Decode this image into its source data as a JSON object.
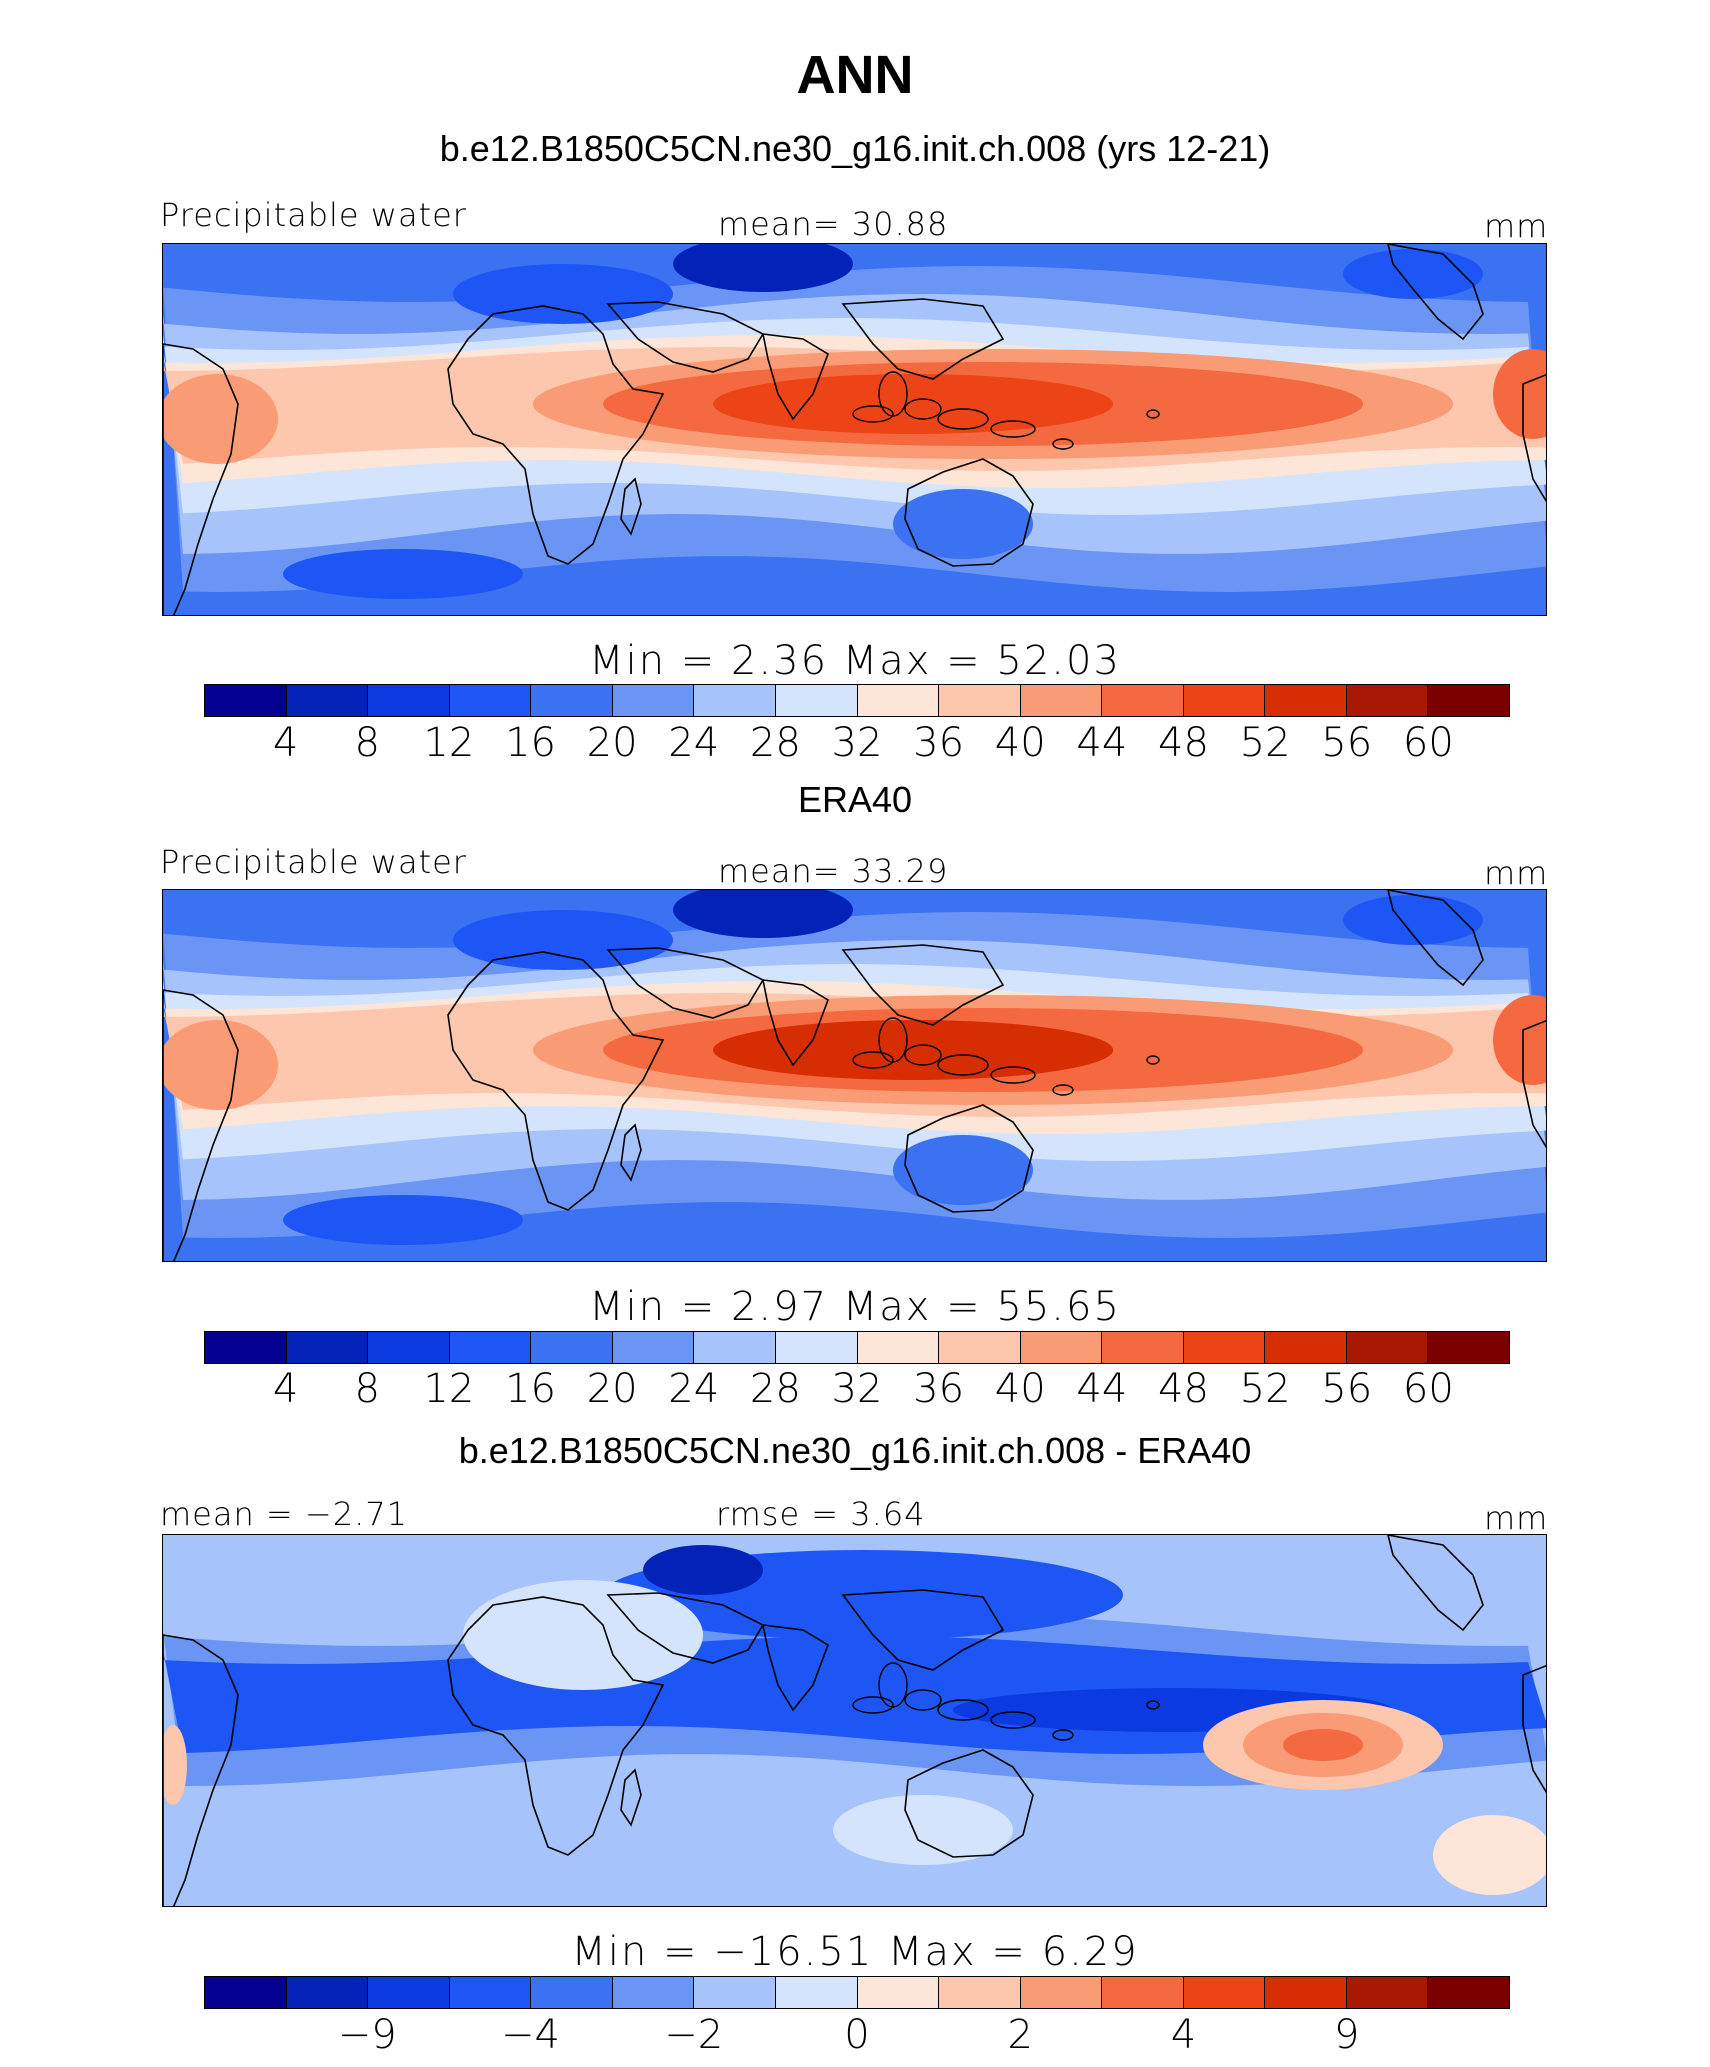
{
  "title": "ANN",
  "colors": {
    "palette": [
      "#05008f",
      "#0322b8",
      "#0a3ae0",
      "#1e55f5",
      "#3b72f2",
      "#6b95f5",
      "#a6c3fb",
      "#d4e4fd",
      "#fde6d8",
      "#fcc7ad",
      "#f99b74",
      "#f4693f",
      "#ec4417",
      "#d62e02",
      "#a81802",
      "#7a0000"
    ]
  },
  "panels": [
    {
      "heading": "b.e12.B1850C5CN.ne30_g16.init.ch.008 (yrs 12-21)",
      "left_label": "Precipitable water",
      "center_label": "mean=   30.88",
      "unit": "mm",
      "stats": "Min  =     2.36  Max  =    52.03",
      "ticks": [
        "4",
        "8",
        "12",
        "16",
        "20",
        "24",
        "28",
        "32",
        "36",
        "40",
        "44",
        "48",
        "52",
        "56",
        "60"
      ],
      "field": "model"
    },
    {
      "heading": "ERA40",
      "left_label": "Precipitable water",
      "center_label": "mean=   33.29",
      "unit": "mm",
      "stats": "Min  =     2.97  Max  =    55.65",
      "ticks": [
        "4",
        "8",
        "12",
        "16",
        "20",
        "24",
        "28",
        "32",
        "36",
        "40",
        "44",
        "48",
        "52",
        "56",
        "60"
      ],
      "field": "obs"
    },
    {
      "heading": "b.e12.B1850C5CN.ne30_g16.init.ch.008 - ERA40",
      "left_label": "mean =   −2.71",
      "center_label": "rmse =    3.64",
      "unit": "mm",
      "stats": "Min  = −16.51  Max  =     6.29",
      "ticks": [
        "",
        "−9",
        "",
        "−4",
        "",
        "−2",
        "",
        "0",
        "",
        "2",
        "",
        "4",
        "",
        "9",
        ""
      ],
      "field": "diff"
    }
  ]
}
